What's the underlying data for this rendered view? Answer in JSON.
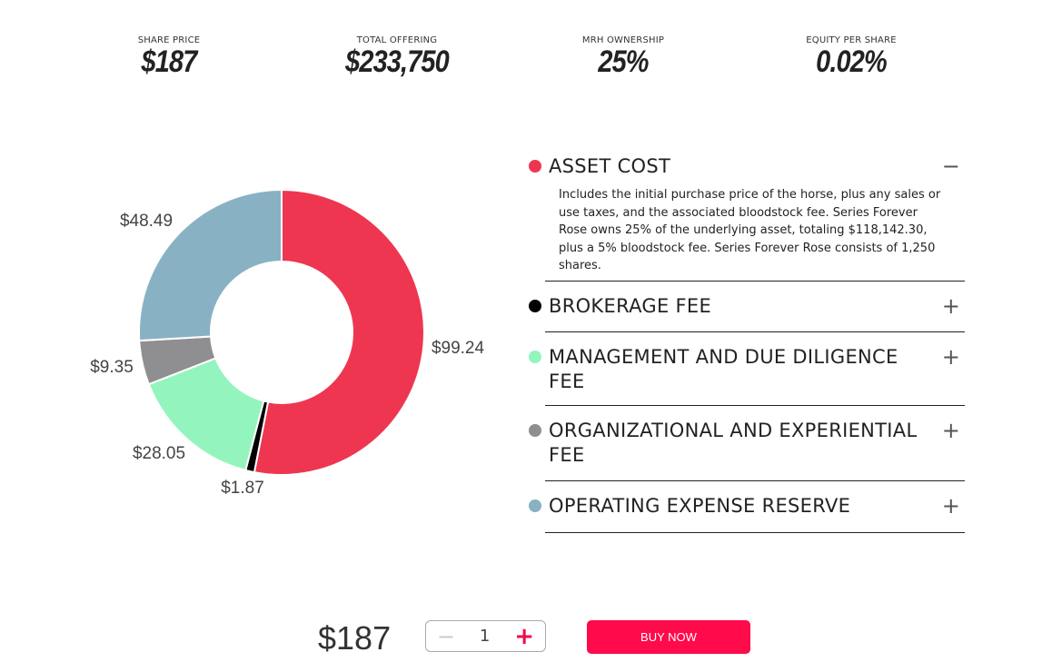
{
  "stats": [
    {
      "label": "SHARE PRICE",
      "value": "$187"
    },
    {
      "label": "TOTAL OFFERING",
      "value": "$233,750"
    },
    {
      "label": "MRH OWNERSHIP",
      "value": "25%"
    },
    {
      "label": "EQUITY PER SHARE",
      "value": "0.02%"
    }
  ],
  "chart_data": {
    "type": "pie",
    "donut": true,
    "categories": [
      "ASSET COST",
      "BROKERAGE FEE",
      "MANAGEMENT AND DUE DILIGENCE FEE",
      "ORGANIZATIONAL AND EXPERIENTIAL FEE",
      "OPERATING EXPENSE RESERVE"
    ],
    "values": [
      99.24,
      1.87,
      28.05,
      9.35,
      48.49
    ],
    "labels": [
      "$99.24",
      "$1.87",
      "$28.05",
      "$9.35",
      "$48.49"
    ],
    "colors": [
      "#ee3650",
      "#000000",
      "#93f5bd",
      "#8f8e90",
      "#88b2c4"
    ]
  },
  "accordion": [
    {
      "title": "ASSET COST",
      "color": "#ee3650",
      "toggle": "−",
      "expanded": true,
      "description": "Includes the initial purchase price of the horse, plus any sales or use taxes, and the associated bloodstock fee. Series Forever Rose owns 25% of the underlying asset, totaling $118,142.30, plus a 5% bloodstock fee. Series Forever Rose consists of 1,250 shares."
    },
    {
      "title": "BROKERAGE FEE",
      "color": "#000000",
      "toggle": "+"
    },
    {
      "title": "MANAGEMENT AND DUE DILIGENCE FEE",
      "color": "#93f5bd",
      "toggle": "+"
    },
    {
      "title": "ORGANIZATIONAL AND EXPERIENTIAL FEE",
      "color": "#8f8e90",
      "toggle": "+"
    },
    {
      "title": "OPERATING EXPENSE RESERVE",
      "color": "#88b2c4",
      "toggle": "+"
    }
  ],
  "purchase": {
    "price": "$187",
    "minus": "−",
    "quantity": "1",
    "plus": "+",
    "buy_label": "BUY NOW"
  }
}
